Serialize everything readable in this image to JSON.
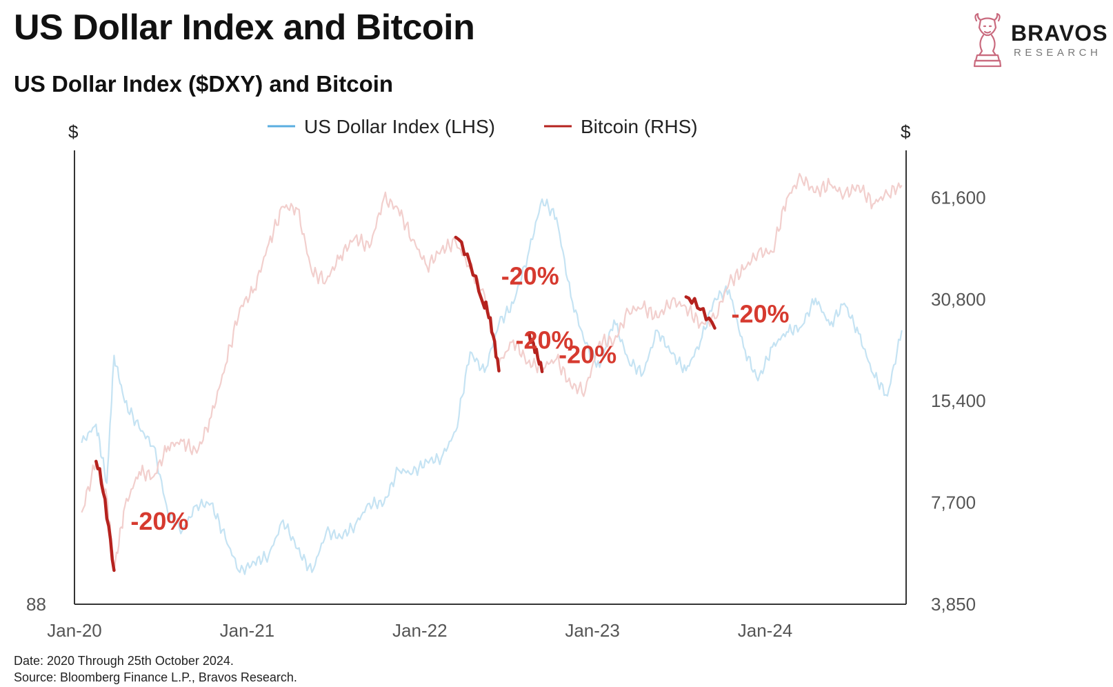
{
  "header": {
    "title": "US Dollar Index and Bitcoin",
    "subtitle": "US Dollar Index ($DXY) and Bitcoin"
  },
  "brand": {
    "name": "BRAVOS",
    "tagline": "RESEARCH",
    "color": "#c96a7e"
  },
  "footer": {
    "date_note": "Date: 2020 Through 25th October 2024.",
    "source_note": "Source: Bloomberg Finance L.P., Bravos Research."
  },
  "chart_data": {
    "type": "line",
    "title": "US Dollar Index ($DXY) and Bitcoin",
    "x_tick_labels": [
      "Jan-20",
      "Jan-21",
      "Jan-22",
      "Jan-23",
      "Jan-24"
    ],
    "x_tick_dates": [
      "2020-01",
      "2021-01",
      "2022-01",
      "2023-01",
      "2024-01"
    ],
    "xlim": [
      "2020-01",
      "2024-10"
    ],
    "left_axis": {
      "unit_label": "$",
      "tick_labels": [
        "88"
      ],
      "tick_values": [
        88
      ],
      "ylim": [
        88,
        115
      ]
    },
    "right_axis": {
      "unit_label": "$",
      "scale": "log",
      "tick_labels": [
        "3,850",
        "7,700",
        "15,400",
        "30,800",
        "61,600"
      ],
      "tick_values": [
        3850,
        7700,
        15400,
        30800,
        61600
      ],
      "ylim": [
        3850,
        85000
      ]
    },
    "grid": false,
    "legend_position": "top-center",
    "series": [
      {
        "name": "US Dollar Index (LHS)",
        "axis": "left",
        "color": "#c5e3f3",
        "legend_color": "#5aaee0",
        "x": [
          "2020-01",
          "2020-02",
          "2020-03",
          "2020-03",
          "2020-04",
          "2020-05",
          "2020-06",
          "2020-07",
          "2020-08",
          "2020-09",
          "2020-10",
          "2020-11",
          "2020-12",
          "2021-01",
          "2021-02",
          "2021-03",
          "2021-04",
          "2021-05",
          "2021-06",
          "2021-07",
          "2021-08",
          "2021-09",
          "2021-10",
          "2021-11",
          "2021-12",
          "2022-01",
          "2022-02",
          "2022-03",
          "2022-04",
          "2022-05",
          "2022-06",
          "2022-07",
          "2022-08",
          "2022-09",
          "2022-10",
          "2022-11",
          "2022-12",
          "2023-01",
          "2023-02",
          "2023-03",
          "2023-04",
          "2023-05",
          "2023-06",
          "2023-07",
          "2023-08",
          "2023-09",
          "2023-10",
          "2023-11",
          "2023-12",
          "2024-01",
          "2024-02",
          "2024-03",
          "2024-04",
          "2024-05",
          "2024-06",
          "2024-07",
          "2024-08",
          "2024-09",
          "2024-10"
        ],
        "y": [
          97.6,
          98.7,
          95.2,
          102.8,
          100.0,
          98.5,
          97.4,
          93.4,
          92.4,
          93.9,
          94.0,
          91.9,
          89.9,
          90.5,
          90.9,
          93.0,
          91.3,
          89.9,
          92.3,
          92.0,
          92.7,
          94.0,
          94.0,
          96.0,
          95.8,
          96.5,
          96.7,
          98.3,
          103.0,
          101.8,
          104.7,
          105.9,
          108.7,
          112.1,
          111.0,
          106.3,
          103.5,
          102.1,
          104.9,
          102.5,
          101.7,
          104.3,
          102.9,
          101.9,
          103.6,
          106.2,
          106.7,
          103.3,
          101.3,
          103.3,
          104.2,
          104.5,
          106.2,
          104.6,
          105.9,
          104.1,
          101.7,
          100.4,
          104.3
        ]
      },
      {
        "name": "Bitcoin (RHS)",
        "axis": "right",
        "color": "#f2cfcd",
        "legend_color": "#b5221e",
        "x": [
          "2020-01",
          "2020-02",
          "2020-03",
          "2020-03",
          "2020-04",
          "2020-05",
          "2020-06",
          "2020-07",
          "2020-08",
          "2020-09",
          "2020-10",
          "2020-11",
          "2020-12",
          "2021-01",
          "2021-02",
          "2021-03",
          "2021-04",
          "2021-05",
          "2021-06",
          "2021-07",
          "2021-08",
          "2021-09",
          "2021-10",
          "2021-11",
          "2021-12",
          "2022-01",
          "2022-02",
          "2022-03",
          "2022-04",
          "2022-05",
          "2022-06",
          "2022-07",
          "2022-08",
          "2022-09",
          "2022-10",
          "2022-11",
          "2022-12",
          "2023-01",
          "2023-02",
          "2023-03",
          "2023-04",
          "2023-05",
          "2023-06",
          "2023-07",
          "2023-08",
          "2023-09",
          "2023-10",
          "2023-11",
          "2023-12",
          "2024-01",
          "2024-02",
          "2024-03",
          "2024-04",
          "2024-05",
          "2024-06",
          "2024-07",
          "2024-08",
          "2024-09",
          "2024-10"
        ],
        "y": [
          7200,
          10200,
          8000,
          4850,
          7500,
          9500,
          9200,
          11300,
          11700,
          10800,
          13800,
          19700,
          29000,
          33000,
          45000,
          58000,
          57000,
          37000,
          35000,
          41500,
          47000,
          43800,
          61300,
          57000,
          46300,
          38500,
          43200,
          45500,
          38000,
          31700,
          19800,
          23300,
          20000,
          19400,
          20500,
          17100,
          16500,
          23100,
          23100,
          28400,
          29200,
          27200,
          30500,
          29200,
          26000,
          27000,
          34500,
          37700,
          42300,
          42500,
          61200,
          71000,
          63800,
          67500,
          62700,
          66800,
          59000,
          63300,
          67000
        ]
      }
    ],
    "highlighted_drawdowns": [
      {
        "start": "2020-02",
        "end": "2020-03",
        "label": "-20%",
        "start_value": 10200,
        "end_value": 4850
      },
      {
        "start": "2022-03",
        "end": "2022-05",
        "label": "-20%",
        "start_value": 47000,
        "end_value": 29000
      },
      {
        "start": "2022-05",
        "end": "2022-06",
        "label": "-20%",
        "start_value": 30000,
        "end_value": 18900
      },
      {
        "start": "2022-08",
        "end": "2022-09",
        "label": "-20%",
        "start_value": 24200,
        "end_value": 18800
      },
      {
        "start": "2023-07",
        "end": "2023-09",
        "label": "-20%",
        "start_value": 31300,
        "end_value": 25300
      }
    ],
    "drawdown_color": "#b5221e",
    "annotation_color": "#d63a2f"
  }
}
